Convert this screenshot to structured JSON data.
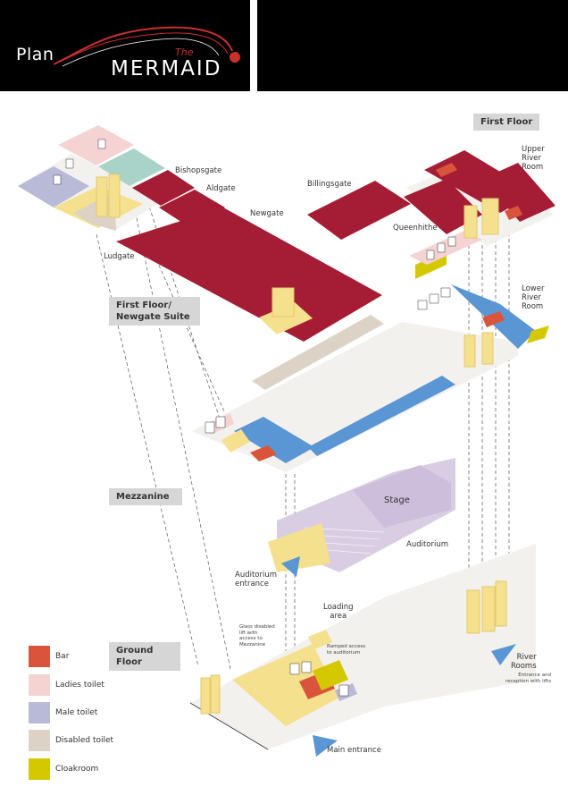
{
  "header": {
    "plan_word": "Plan",
    "logo_the": "The",
    "logo_name": "MERMAID"
  },
  "levels": {
    "first_floor": "First Floor",
    "first_floor_newgate_line1": "First Floor/",
    "first_floor_newgate_line2": "Newgate Suite",
    "mezzanine": "Mezzanine",
    "ground_floor": "Ground Floor"
  },
  "rooms": {
    "bishopsgate": "Bishopsgate",
    "aldgate": "Aldgate",
    "newgate": "Newgate",
    "ludgate": "Ludgate",
    "billingsgate": "Billingsgate",
    "upper_river_room": [
      "Upper",
      "River",
      "Room"
    ],
    "queenhithe": "Queenhithe",
    "lower_river_room": [
      "Lower",
      "River",
      "Room"
    ],
    "stage": "Stage",
    "auditorium": "Auditorium",
    "auditorium_entrance": [
      "Auditorium",
      "entrance"
    ],
    "loading_area": [
      "Loading",
      "area"
    ],
    "river_rooms": [
      "River",
      "Rooms"
    ],
    "main_entrance": "Main entrance"
  },
  "notes": {
    "glass_lift": [
      "Glass disabled",
      "lift with",
      "access to",
      "Mezzanine"
    ],
    "ramped_access": [
      "Ramped access",
      "to auditorium"
    ],
    "river_rooms_entrance": [
      "Entrance and",
      "reception with lifts"
    ]
  },
  "legend": [
    {
      "label": "Bar",
      "color": "#d9543a"
    },
    {
      "label": "Ladies toilet",
      "color": "#f6d3d3"
    },
    {
      "label": "Male toilet",
      "color": "#b9b9d8"
    },
    {
      "label": "Disabled toilet",
      "color": "#ddd2c6"
    },
    {
      "label": "Cloakroom",
      "color": "#d4c900"
    }
  ],
  "icons": [
    "ladies-icon",
    "gents-icon",
    "wheelchair-icon",
    "entrance-arrow-icon"
  ],
  "colors": {
    "room": "#a51d35",
    "corridor": "#f3f1ee",
    "lift": "#f5e08d",
    "walkway_blue": "#5b96d4",
    "teal": "#a9d3c8",
    "stage": "#d9cde4",
    "brand_red": "#c9302c"
  }
}
